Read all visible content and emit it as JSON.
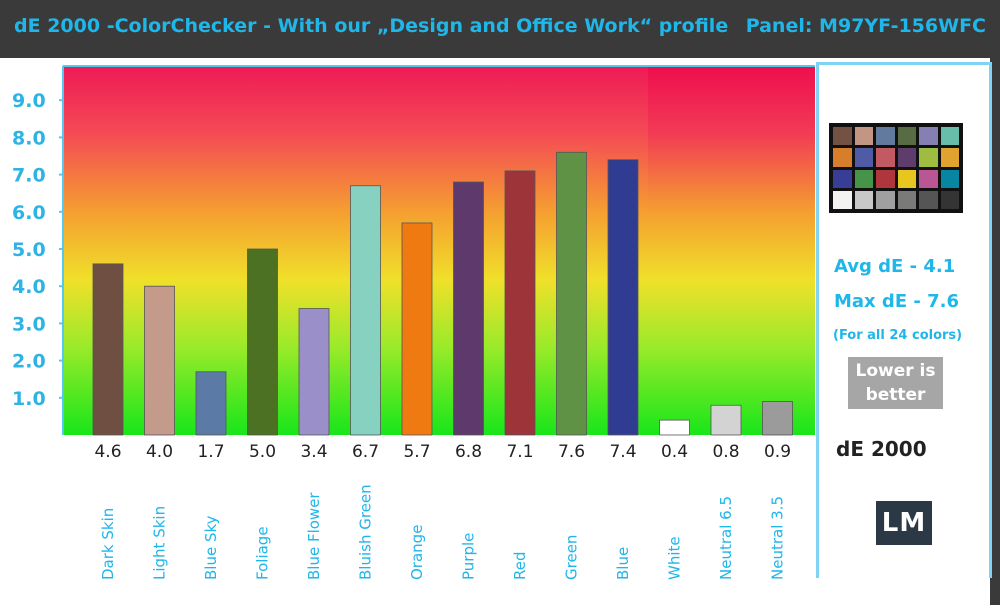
{
  "header": {
    "title": "dE 2000 -ColorChecker - With our „Design and Office Work“ profile",
    "panel": "Panel: M97YF-156WFC"
  },
  "side": {
    "avg": "Avg dE - 4.1",
    "max": "Max dE - 7.6",
    "note": "(For all 24 colors)",
    "lower_line1": "Lower is",
    "lower_line2": "better",
    "metric": "dE 2000",
    "logo": "LM"
  },
  "checker_colors": [
    "#735244",
    "#c29682",
    "#627a9d",
    "#576c43",
    "#8580b1",
    "#67bdaa",
    "#d67e2c",
    "#505ba6",
    "#c15a63",
    "#5e3c6c",
    "#9dbc40",
    "#e0a32e",
    "#383d96",
    "#469449",
    "#af363c",
    "#e7c71f",
    "#bb5695",
    "#0885a1",
    "#f3f3f2",
    "#c8c8c8",
    "#a0a0a0",
    "#7a7a79",
    "#555555",
    "#343434"
  ],
  "chart_data": {
    "type": "bar",
    "title": "dE 2000 -ColorChecker - With our „Design and Office Work“ profile",
    "ylabel": "",
    "xlabel": "",
    "ylim": [
      0,
      10
    ],
    "yticks": [
      "1.0",
      "2.0",
      "3.0",
      "4.0",
      "5.0",
      "6.0",
      "7.0",
      "8.0",
      "9.0"
    ],
    "categories": [
      "Dark Skin",
      "Light Skin",
      "Blue Sky",
      "Foliage",
      "Blue Flower",
      "Bluish Green",
      "Orange",
      "Purple",
      "Red",
      "Green",
      "Blue",
      "White",
      "Neutral 6.5",
      "Neutral 3.5"
    ],
    "values": [
      4.6,
      4.0,
      1.7,
      5.0,
      3.4,
      6.7,
      5.7,
      6.8,
      7.1,
      7.6,
      7.4,
      0.4,
      0.8,
      0.9
    ],
    "value_labels": [
      "4.6",
      "4.0",
      "1.7",
      "5.0",
      "3.4",
      "6.7",
      "5.7",
      "6.8",
      "7.1",
      "7.6",
      "7.4",
      "0.4",
      "0.8",
      "0.9"
    ],
    "colors": [
      "#6e4f42",
      "#c49a8a",
      "#5b7ba6",
      "#4d7123",
      "#9a8fc8",
      "#86d1c0",
      "#f07a12",
      "#5d3a6b",
      "#9c343a",
      "#5f9245",
      "#2f3c92",
      "#ffffff",
      "#d3d3d3",
      "#9b9b9b"
    ],
    "grid": false,
    "legend": "none"
  }
}
